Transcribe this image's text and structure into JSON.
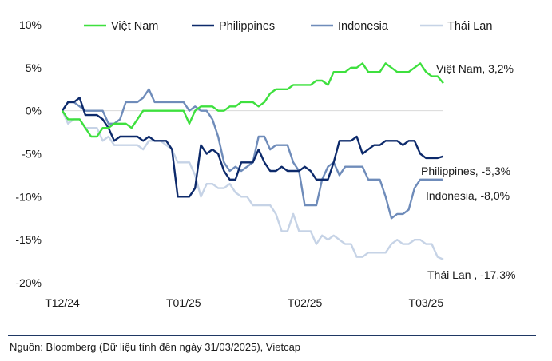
{
  "chart_data": {
    "type": "line",
    "ylim": [
      -20,
      10
    ],
    "y_ticks": [
      "10%",
      "5%",
      "0%",
      "-5%",
      "-10%",
      "-15%",
      "-20%"
    ],
    "y_tick_values": [
      10,
      5,
      0,
      -5,
      -10,
      -15,
      -20
    ],
    "x_ticks": [
      "T12/24",
      "T01/25",
      "T02/25",
      "T03/25"
    ],
    "x_tick_index": [
      0,
      21,
      42,
      63
    ],
    "grid": false,
    "zero_line": true,
    "legend_position": "top",
    "series": [
      {
        "name": "Việt Nam",
        "color": "#3ee03e",
        "end_label": "Việt Nam, 3,2%",
        "values": [
          0,
          -1,
          -1,
          -1,
          -2,
          -3,
          -3,
          -2,
          -2,
          -1.5,
          -1.5,
          -1.5,
          -2,
          -1,
          0,
          0,
          0,
          0,
          0,
          0,
          0,
          0,
          -1.5,
          0,
          0.5,
          0.5,
          0.5,
          0,
          0,
          0.5,
          0.5,
          1,
          1,
          1,
          0.5,
          1,
          2,
          2.5,
          2.5,
          2.5,
          3,
          3,
          3,
          3,
          3.5,
          3.5,
          3,
          4.5,
          4.5,
          4.5,
          5,
          5,
          5.5,
          4.5,
          4.5,
          4.5,
          5.5,
          5,
          4.5,
          4.5,
          4.5,
          5,
          5.5,
          4.5,
          4,
          4,
          3.2
        ]
      },
      {
        "name": "Philippines",
        "color": "#0d2a6b",
        "end_label": "Philippines, -5,3%",
        "values": [
          0,
          1,
          1,
          1.5,
          -0.5,
          -0.5,
          -0.5,
          -1,
          -2,
          -3.5,
          -3,
          -3,
          -3,
          -3,
          -3.5,
          -3,
          -3.5,
          -3.5,
          -3.5,
          -4.5,
          -10,
          -10,
          -10,
          -9,
          -4,
          -5,
          -4.5,
          -5,
          -7,
          -8,
          -8,
          -6,
          -6,
          -6,
          -4.5,
          -6,
          -7,
          -7,
          -6.5,
          -7,
          -7,
          -7,
          -6.5,
          -7,
          -8,
          -8,
          -8,
          -6,
          -3.5,
          -3.5,
          -3.5,
          -3,
          -5,
          -4.5,
          -4,
          -4,
          -3.5,
          -3.5,
          -3.5,
          -4,
          -3.5,
          -3.5,
          -5,
          -5.5,
          -5.5,
          -5.5,
          -5.3
        ]
      },
      {
        "name": "Indonesia",
        "color": "#6f8cba",
        "end_label": "Indonesia, -8,0%",
        "values": [
          0,
          1,
          1,
          0.5,
          0,
          0,
          0,
          0,
          -1.5,
          -1.5,
          -1,
          1,
          1,
          1,
          1.5,
          2.5,
          1,
          1,
          1,
          1,
          1,
          1,
          0,
          0.5,
          0,
          0,
          -1,
          -3,
          -6,
          -7,
          -6.5,
          -7,
          -6.5,
          -6,
          -3,
          -3,
          -4.5,
          -4,
          -4,
          -4,
          -6,
          -7,
          -11,
          -11,
          -11,
          -8,
          -6.5,
          -6,
          -7.5,
          -6.5,
          -6.5,
          -6.5,
          -6.5,
          -8,
          -8,
          -8,
          -10,
          -12.5,
          -12,
          -12,
          -11.5,
          -9,
          -8,
          -8,
          -8,
          -8,
          -8.0
        ]
      },
      {
        "name": "Thái Lan",
        "color": "#c6d3e6",
        "end_label": "Thái Lan ,  -17,3%",
        "values": [
          0,
          -1.5,
          -1,
          -1,
          -2,
          -2,
          -2,
          -3.5,
          -3,
          -4,
          -4,
          -4,
          -4,
          -4,
          -4.5,
          -3.5,
          -3.5,
          -3.5,
          -4,
          -4.5,
          -6,
          -6,
          -6,
          -7.5,
          -10,
          -8.5,
          -8.5,
          -9,
          -9,
          -8.5,
          -9.5,
          -10,
          -10,
          -11,
          -11,
          -11,
          -11,
          -12,
          -14,
          -14,
          -12,
          -14,
          -14,
          -14,
          -15.5,
          -14.5,
          -15,
          -14.5,
          -15,
          -15.5,
          -15.5,
          -17,
          -17,
          -16.5,
          -16.5,
          -16.5,
          -16.5,
          -15.5,
          -15,
          -15.5,
          -15.5,
          -15,
          -15,
          -15.5,
          -15.5,
          -17,
          -17.3
        ]
      }
    ]
  },
  "source": "Nguồn: Bloomberg (Dữ liệu tính đến ngày 31/03/2025), Vietcap"
}
